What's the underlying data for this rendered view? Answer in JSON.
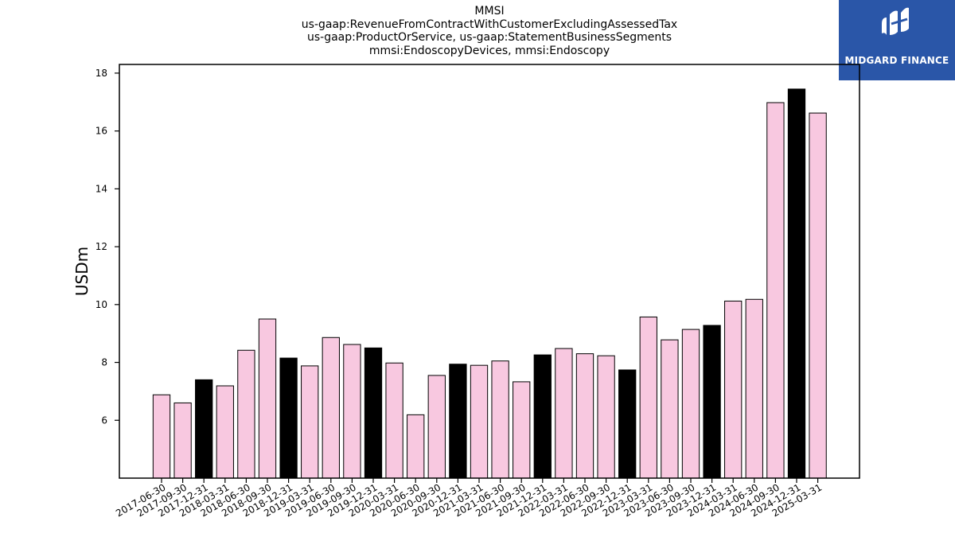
{
  "title_lines": [
    "MMSI",
    "us-gaap:RevenueFromContractWithCustomerExcludingAssessedTax",
    "us-gaap:ProductOrService, us-gaap:StatementBusinessSegments",
    "mmsi:EndoscopyDevices, mmsi:Endoscopy"
  ],
  "logo": {
    "text": "MIDGARD FINANCE",
    "icon": "midgard-logo-icon",
    "background": "#2a56a8"
  },
  "chart_data": {
    "type": "bar",
    "ylabel": "USDm",
    "xlabel": "",
    "ylim": [
      4.0,
      18.3
    ],
    "yticks": [
      6,
      8,
      10,
      12,
      14,
      16,
      18
    ],
    "grid": false,
    "colors": {
      "default": "#f8c8e0",
      "highlight": "#000000",
      "edge": "#000000"
    },
    "categories": [
      "2017-06-30",
      "2017-09-30",
      "2017-12-31",
      "2018-03-31",
      "2018-06-30",
      "2018-09-30",
      "2018-12-31",
      "2019-03-31",
      "2019-06-30",
      "2019-09-30",
      "2019-12-31",
      "2020-03-31",
      "2020-06-30",
      "2020-09-30",
      "2020-12-31",
      "2021-03-31",
      "2021-06-30",
      "2021-09-30",
      "2021-12-31",
      "2022-03-31",
      "2022-06-30",
      "2022-09-30",
      "2022-12-31",
      "2023-03-31",
      "2023-06-30",
      "2023-09-30",
      "2023-12-31",
      "2024-03-31",
      "2024-06-30",
      "2024-09-30",
      "2024-12-31",
      "2025-03-31"
    ],
    "values": [
      6.88,
      6.6,
      7.4,
      7.19,
      8.42,
      9.5,
      8.15,
      7.88,
      8.86,
      8.62,
      8.5,
      7.98,
      6.19,
      7.55,
      7.94,
      7.9,
      8.05,
      7.33,
      8.26,
      8.48,
      8.3,
      8.23,
      7.74,
      9.57,
      8.78,
      9.14,
      9.28,
      10.12,
      10.18,
      16.98,
      17.45,
      16.62
    ],
    "highlighted": [
      false,
      false,
      true,
      false,
      false,
      false,
      true,
      false,
      false,
      false,
      true,
      false,
      false,
      false,
      true,
      false,
      false,
      false,
      true,
      false,
      false,
      false,
      true,
      false,
      false,
      false,
      true,
      false,
      false,
      false,
      true,
      false
    ]
  }
}
